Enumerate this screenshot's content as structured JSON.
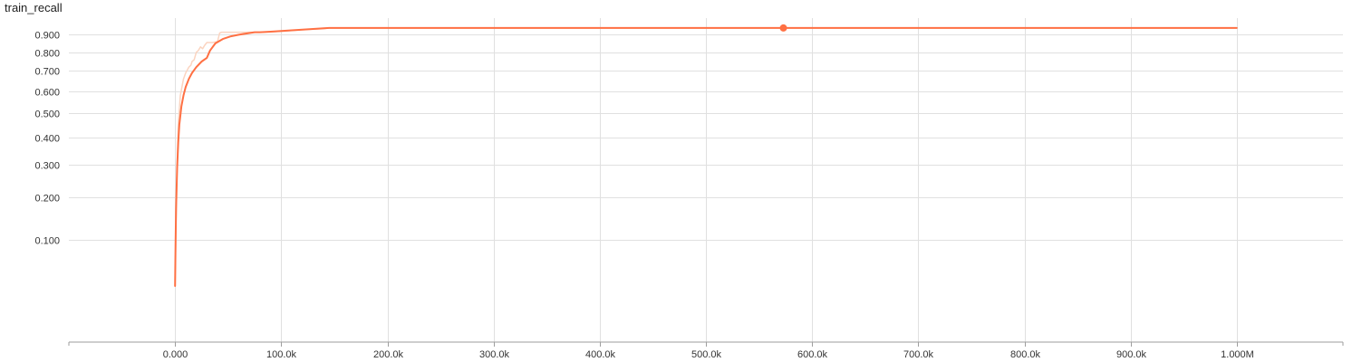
{
  "chart_data": {
    "type": "line",
    "title": "train_recall",
    "xlabel": "",
    "ylabel": "",
    "xlim": [
      -100000,
      1100000
    ],
    "ylim": [
      0.0,
      1.0
    ],
    "y_scale": "sqrt",
    "grid": true,
    "x_ticks": [
      0,
      100000,
      200000,
      300000,
      400000,
      500000,
      600000,
      700000,
      800000,
      900000,
      1000000
    ],
    "x_tick_labels": [
      "0.000",
      "100.0k",
      "200.0k",
      "300.0k",
      "400.0k",
      "500.0k",
      "600.0k",
      "700.0k",
      "800.0k",
      "900.0k",
      "1.000M"
    ],
    "y_ticks": [
      0.1,
      0.2,
      0.3,
      0.4,
      0.5,
      0.6,
      0.7,
      0.8,
      0.9
    ],
    "y_tick_labels": [
      "0.100",
      "0.200",
      "0.300",
      "0.400",
      "0.500",
      "0.600",
      "0.700",
      "0.800",
      "0.900"
    ],
    "series": [
      {
        "role": "raw",
        "color": "#fbd4c0",
        "x": [
          0,
          1000,
          2000,
          3000,
          5000,
          8000,
          10000,
          13000,
          15000,
          16000,
          18000,
          20000,
          22000,
          24000,
          26000,
          28000,
          30000,
          33000,
          35000,
          40000,
          42000,
          44000,
          50000,
          60000,
          70000,
          80000,
          100000,
          120000,
          140000,
          145000,
          200000,
          300000,
          400000,
          500000,
          600000,
          700000,
          800000,
          900000,
          1000000
        ],
        "y": [
          0.03,
          0.14,
          0.3,
          0.45,
          0.58,
          0.66,
          0.69,
          0.72,
          0.73,
          0.75,
          0.76,
          0.8,
          0.81,
          0.83,
          0.82,
          0.84,
          0.855,
          0.855,
          0.855,
          0.86,
          0.91,
          0.915,
          0.915,
          0.915,
          0.915,
          0.915,
          0.92,
          0.93,
          0.935,
          0.94,
          0.94,
          0.94,
          0.94,
          0.94,
          0.94,
          0.94,
          0.94,
          0.94,
          0.94
        ]
      },
      {
        "role": "smoothed",
        "color": "#ff7043",
        "x": [
          0,
          500,
          1000,
          2000,
          3000,
          4000,
          6000,
          8000,
          10000,
          13000,
          16000,
          20000,
          25000,
          30000,
          33000,
          38000,
          45000,
          52000,
          60000,
          70000,
          75000,
          80000,
          90000,
          100000,
          120000,
          140000,
          145000,
          200000,
          300000,
          400000,
          500000,
          573000,
          600000,
          700000,
          800000,
          900000,
          1000000
        ],
        "y": [
          0.03,
          0.1,
          0.17,
          0.29,
          0.38,
          0.45,
          0.53,
          0.58,
          0.62,
          0.66,
          0.69,
          0.72,
          0.75,
          0.77,
          0.81,
          0.85,
          0.875,
          0.89,
          0.9,
          0.91,
          0.915,
          0.915,
          0.918,
          0.922,
          0.93,
          0.938,
          0.94,
          0.94,
          0.94,
          0.94,
          0.94,
          0.94,
          0.94,
          0.94,
          0.94,
          0.94,
          0.94
        ]
      }
    ],
    "marker": {
      "x": 573000,
      "y": 0.94,
      "color": "#ff7043"
    }
  }
}
